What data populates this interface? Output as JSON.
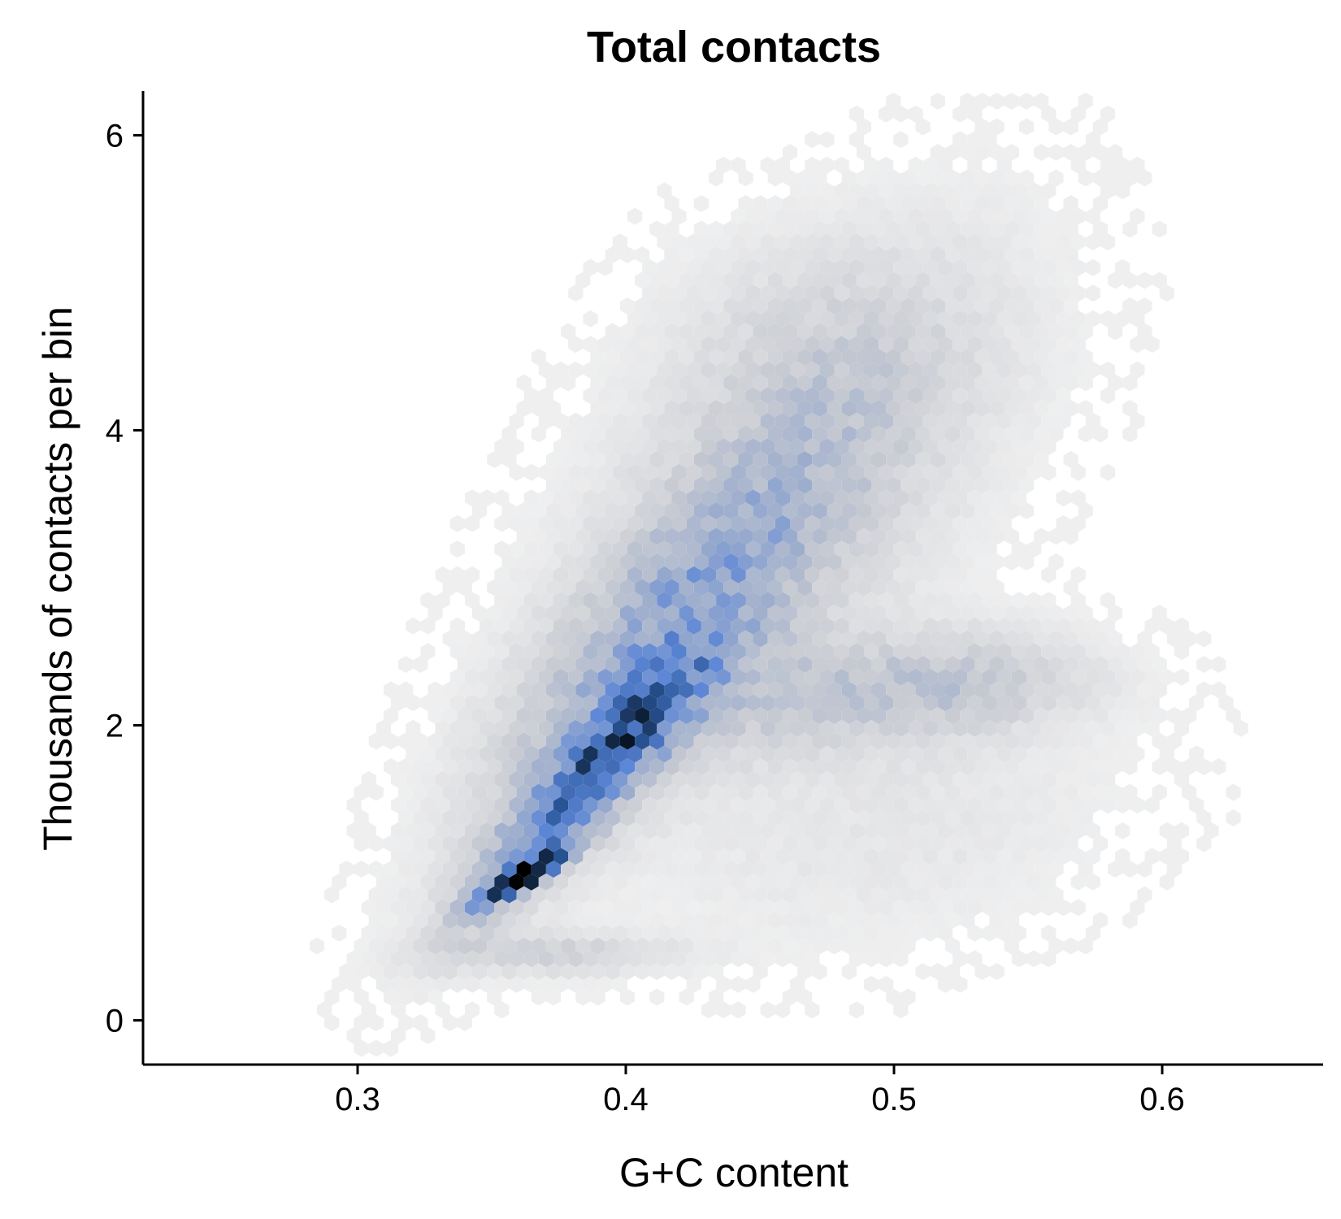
{
  "chart_data": {
    "type": "heatmap",
    "subtype": "hexbin",
    "title": "Total contacts",
    "xlabel": "G+C content",
    "ylabel": "Thousands of contacts per bin",
    "xlim": [
      0.22,
      0.66
    ],
    "ylim": [
      -0.3,
      6.3
    ],
    "xticks": [
      0.3,
      0.4,
      0.5,
      0.6
    ],
    "xtick_labels": [
      "0.3",
      "0.4",
      "0.5",
      "0.6"
    ],
    "yticks": [
      0,
      2,
      4,
      6
    ],
    "ytick_labels": [
      "0",
      "2",
      "4",
      "6"
    ],
    "grid": false,
    "legend": "none",
    "colors": {
      "low": "#f4f4f4",
      "mid_gray": "#c9cbcf",
      "mid_blue": "#5a86d6",
      "high": "#000000"
    },
    "density_components": [
      {
        "center": [
          0.36,
          0.95
        ],
        "sd": [
          0.012,
          0.14
        ],
        "rho": 0.92,
        "weight": 1.0
      },
      {
        "center": [
          0.385,
          1.6
        ],
        "sd": [
          0.028,
          0.55
        ],
        "rho": 0.9,
        "weight": 0.55
      },
      {
        "center": [
          0.415,
          2.6
        ],
        "sd": [
          0.045,
          0.95
        ],
        "rho": 0.8,
        "weight": 0.33
      },
      {
        "center": [
          0.46,
          3.6
        ],
        "sd": [
          0.055,
          1.1
        ],
        "rho": 0.55,
        "weight": 0.16
      },
      {
        "center": [
          0.48,
          2.2
        ],
        "sd": [
          0.05,
          0.28
        ],
        "rho": 0.25,
        "weight": 0.17
      },
      {
        "center": [
          0.53,
          2.3
        ],
        "sd": [
          0.03,
          0.22
        ],
        "rho": 0.0,
        "weight": 0.12
      },
      {
        "center": [
          0.375,
          0.45
        ],
        "sd": [
          0.03,
          0.1
        ],
        "rho": 0.0,
        "weight": 0.16
      },
      {
        "center": [
          0.5,
          1.3
        ],
        "sd": [
          0.06,
          0.6
        ],
        "rho": 0.3,
        "weight": 0.06
      },
      {
        "center": [
          0.47,
          4.6
        ],
        "sd": [
          0.04,
          0.5
        ],
        "rho": 0.0,
        "weight": 0.07
      }
    ],
    "density_cutoff": 0.02
  }
}
